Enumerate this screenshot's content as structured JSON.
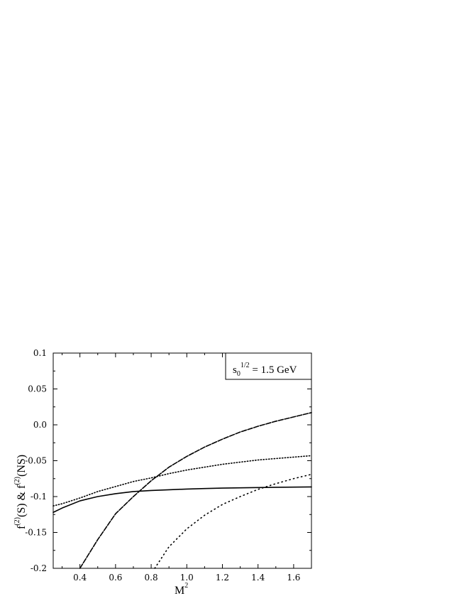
{
  "chart_data": {
    "type": "line",
    "xlabel": {
      "main": "M",
      "sup": "2"
    },
    "ylabel": {
      "p1": "f",
      "s1": "(2)",
      "p2": "(S) & f",
      "s2": "(2)",
      "p3": "(NS)"
    },
    "xlim": [
      0.25,
      1.7
    ],
    "ylim": [
      -0.2,
      0.1
    ],
    "x_ticks": [
      0.4,
      0.6,
      0.8,
      1.0,
      1.2,
      1.4,
      1.6
    ],
    "x_tick_labels": [
      "0.4",
      "0.6",
      "0.8",
      "1.0",
      "1.2",
      "1.4",
      "1.6"
    ],
    "y_ticks": [
      0.1,
      0.05,
      0.0,
      -0.05,
      -0.1,
      -0.15,
      -0.2
    ],
    "y_tick_labels": [
      "0.1",
      "0.05",
      "0.0",
      "-0.05",
      "-0.1",
      "-0.15",
      "-0.2"
    ],
    "annotation": {
      "s": "s",
      "sub": "0",
      "sup": "1/2",
      "rest": " = 1.5 GeV"
    },
    "annotation_position": "top-right",
    "grid": false,
    "series": [
      {
        "style": "solid",
        "x": [
          0.25,
          0.3,
          0.4,
          0.5,
          0.6,
          0.7,
          0.8,
          0.9,
          1.0,
          1.1,
          1.2,
          1.3,
          1.4,
          1.5,
          1.6,
          1.7
        ],
        "y": [
          -0.122,
          -0.116,
          -0.106,
          -0.1,
          -0.096,
          -0.093,
          -0.0915,
          -0.0905,
          -0.0895,
          -0.0888,
          -0.0882,
          -0.0878,
          -0.0874,
          -0.0871,
          -0.0868,
          -0.0866
        ]
      },
      {
        "style": "dotted",
        "x": [
          0.25,
          0.3,
          0.4,
          0.5,
          0.6,
          0.7,
          0.8,
          0.9,
          1.0,
          1.1,
          1.2,
          1.3,
          1.4,
          1.5,
          1.6,
          1.7
        ],
        "y": [
          -0.113,
          -0.11,
          -0.102,
          -0.093,
          -0.086,
          -0.079,
          -0.074,
          -0.068,
          -0.063,
          -0.059,
          -0.055,
          -0.052,
          -0.049,
          -0.047,
          -0.045,
          -0.043
        ]
      },
      {
        "style": "dashed",
        "x": [
          0.4,
          0.5,
          0.6,
          0.7,
          0.8,
          0.9,
          1.0,
          1.1,
          1.2,
          1.3,
          1.4,
          1.5,
          1.6,
          1.7
        ],
        "y": [
          -0.2,
          -0.16,
          -0.124,
          -0.1,
          -0.078,
          -0.059,
          -0.044,
          -0.031,
          -0.02,
          -0.01,
          -0.002,
          0.005,
          0.011,
          0.017
        ]
      },
      {
        "style": "loosely-dotted",
        "x": [
          0.82,
          0.9,
          1.0,
          1.1,
          1.2,
          1.3,
          1.4,
          1.5,
          1.6,
          1.7
        ],
        "y": [
          -0.2,
          -0.17,
          -0.145,
          -0.126,
          -0.111,
          -0.1,
          -0.09,
          -0.082,
          -0.075,
          -0.069
        ]
      }
    ]
  }
}
